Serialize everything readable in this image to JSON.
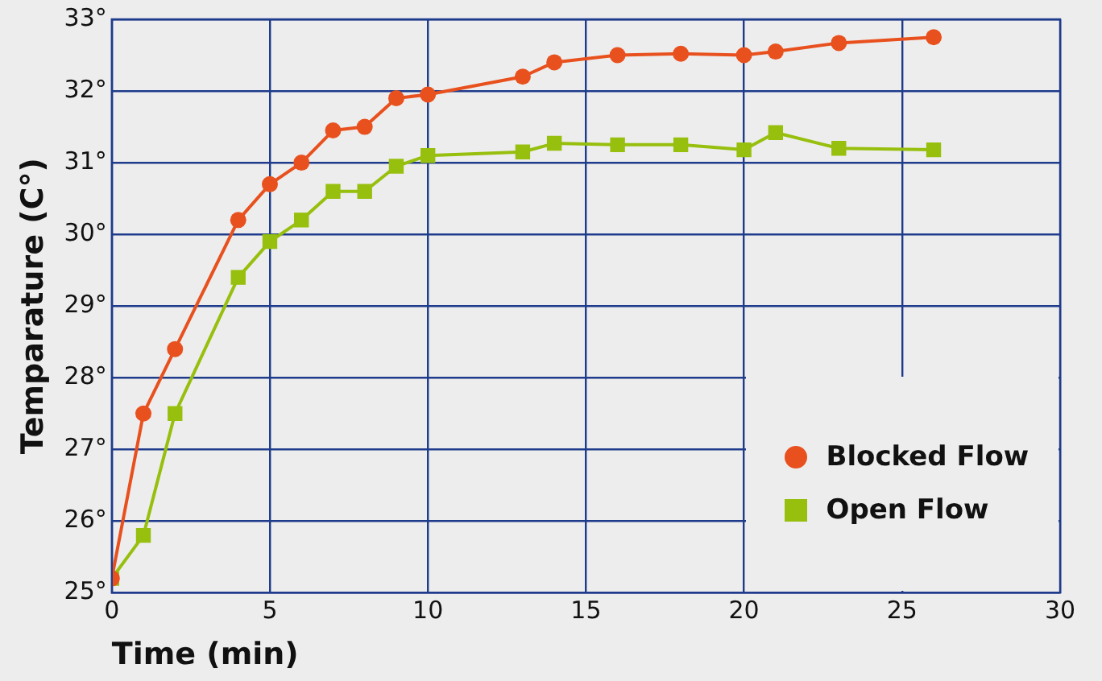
{
  "chart_data": {
    "type": "line",
    "xlabel": "Time (min)",
    "ylabel": "Temparature (C°)",
    "xlim": [
      0,
      30
    ],
    "xticks": [
      0,
      5,
      10,
      15,
      20,
      25,
      30
    ],
    "ylim": [
      25,
      33
    ],
    "yticks": [
      {
        "value": 25,
        "label": "25°"
      },
      {
        "value": 26,
        "label": "26°"
      },
      {
        "value": 27,
        "label": "27°"
      },
      {
        "value": 28,
        "label": "28°"
      },
      {
        "value": 29,
        "label": "29°"
      },
      {
        "value": 30,
        "label": "30°"
      },
      {
        "value": 31,
        "label": "31°"
      },
      {
        "value": 32,
        "label": "32°"
      },
      {
        "value": 33,
        "label": "33°"
      }
    ],
    "grid": true,
    "legend": "bottom right",
    "series": [
      {
        "name": "Blocked Flow",
        "color": "#e8501e",
        "marker": "circle",
        "x": [
          0,
          1,
          2,
          4,
          5,
          6,
          7,
          8,
          9,
          10,
          13,
          14,
          16,
          18,
          20,
          21,
          23,
          26
        ],
        "values": [
          25.2,
          27.5,
          28.4,
          30.2,
          30.7,
          31.0,
          31.45,
          31.5,
          31.9,
          31.95,
          32.2,
          32.4,
          32.5,
          32.52,
          32.5,
          32.55,
          32.67,
          32.75
        ]
      },
      {
        "name": "Open Flow",
        "color": "#97bf0d",
        "marker": "square",
        "x": [
          0,
          1,
          2,
          4,
          5,
          6,
          7,
          8,
          9,
          10,
          13,
          14,
          16,
          18,
          20,
          21,
          23,
          26
        ],
        "values": [
          25.2,
          25.8,
          27.5,
          29.4,
          29.9,
          30.2,
          30.6,
          30.6,
          30.95,
          31.1,
          31.15,
          31.27,
          31.25,
          31.25,
          31.18,
          31.42,
          31.2,
          31.18
        ]
      }
    ]
  }
}
